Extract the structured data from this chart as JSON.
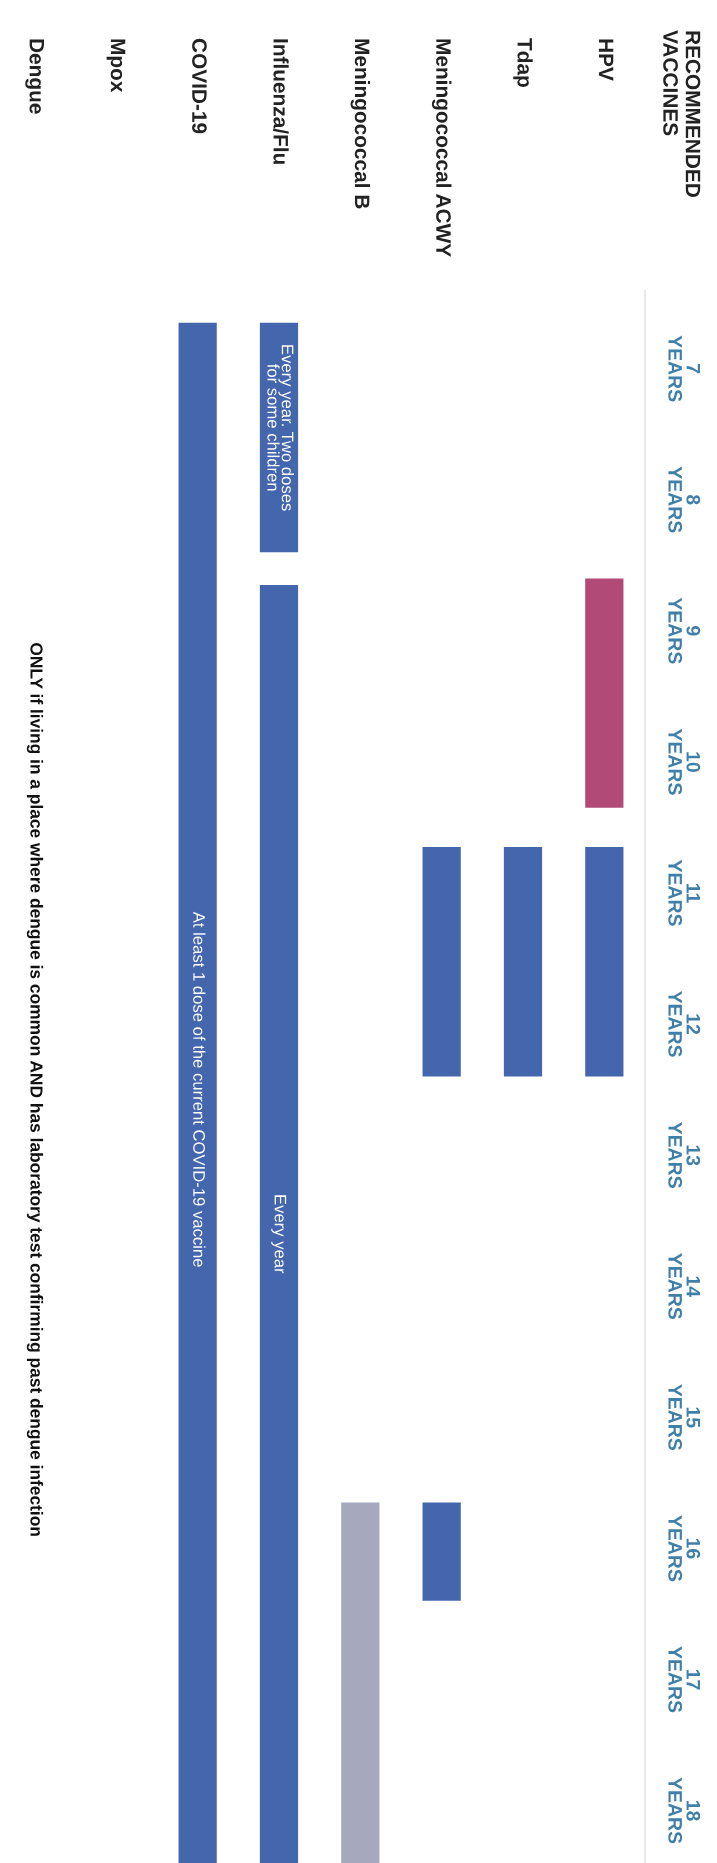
{
  "chart_data": {
    "type": "bar",
    "title": "RECOMMENDED\nVACCINES",
    "categories": [
      "Dengue",
      "Mpox",
      "COVID-19",
      "Influenza/Flu",
      "Meningococcal B",
      "Meningococcal ACWY",
      "Tdap",
      "HPV"
    ],
    "series": [
      {
        "colors": [
          null,
          null,
          "#4466ad",
          "#4466ad",
          "#a6a8bd",
          "#4466ad",
          "#4466ad",
          "#b24a78"
        ],
        "base": [
          null,
          null,
          6.65,
          6.65,
          15.65,
          10.65,
          10.65,
          8.6
        ],
        "values": [
          null,
          null,
          11.75,
          1.75,
          2.75,
          1.75,
          1.75,
          1.75
        ]
      },
      {
        "color": "#4466ad",
        "base": [
          null,
          null,
          null,
          8.65,
          null,
          15.65,
          null,
          10.65
        ],
        "values": [
          null,
          null,
          null,
          9.75,
          null,
          0.75,
          null,
          1.75
        ]
      }
    ],
    "ylim": [
      18.4,
      6.4
    ],
    "yticks": [
      {
        "value": 7,
        "label": "7\nYEARS"
      },
      {
        "value": 8,
        "label": "8\nYEARS"
      },
      {
        "value": 9,
        "label": "9\nYEARS"
      },
      {
        "value": 10,
        "label": "10\nYEARS"
      },
      {
        "value": 11,
        "label": "11\nYEARS"
      },
      {
        "value": 12,
        "label": "12\nYEARS"
      },
      {
        "value": 13,
        "label": "13\nYEARS"
      },
      {
        "value": 14,
        "label": "14\nYEARS"
      },
      {
        "value": 15,
        "label": "15\nYEARS"
      },
      {
        "value": 16,
        "label": "16\nYEARS"
      },
      {
        "value": 17,
        "label": "17\nYEARS"
      },
      {
        "value": 18,
        "label": "18\nYEARS"
      }
    ],
    "annotations": [
      "Every year. Two doses\nfor some children",
      "Every year",
      "At least 1 dose of the current COVID-19 vaccine",
      "ONLY if living in a place where dengue is common AND has laboratory test confirming past dengue infection"
    ]
  }
}
